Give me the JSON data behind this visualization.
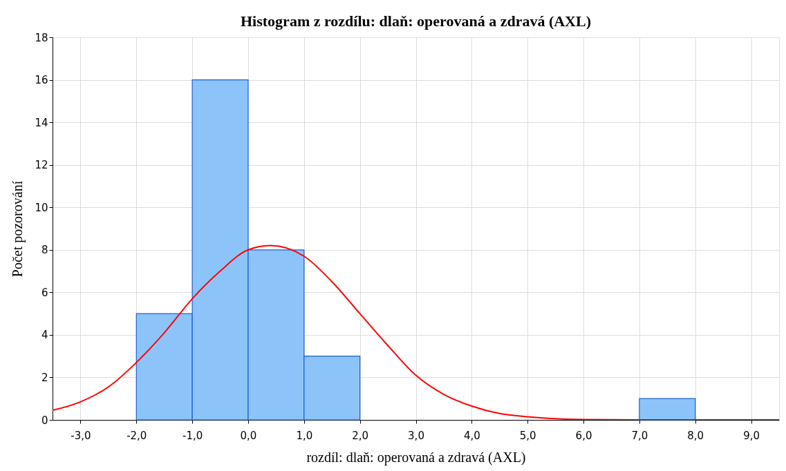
{
  "chart_data": {
    "type": "histogram",
    "title": "Histogram z rozdílu: dlaň: operovaná a zdravá (AXL)",
    "xlabel": "rozdíl: dlaň: operovaná a zdravá (AXL)",
    "ylabel": "Počet pozorování",
    "bins": [
      -2,
      -1,
      0,
      1,
      2,
      3,
      4,
      5,
      6,
      7,
      8
    ],
    "values": [
      5,
      16,
      8,
      3,
      0,
      0,
      0,
      0,
      0,
      1
    ],
    "color": "#8cc4fa",
    "series": [
      {
        "type": "line",
        "color": "#ff0000",
        "x": [
          -3.5,
          -3,
          -2.5,
          -2,
          -1.5,
          -1,
          -0.5,
          0,
          0.4,
          1,
          1.5,
          2,
          2.5,
          3,
          3.5,
          4,
          4.5,
          5,
          5.5,
          6,
          7,
          8,
          9,
          9.5
        ],
        "values": [
          0.45,
          0.85,
          1.55,
          2.7,
          4.1,
          5.7,
          7.0,
          8.0,
          8.2,
          7.7,
          6.5,
          5.0,
          3.5,
          2.1,
          1.2,
          0.65,
          0.3,
          0.15,
          0.06,
          0.02,
          0,
          0,
          0,
          0
        ]
      }
    ],
    "xlim": [
      -3.5,
      9.5
    ],
    "xticks": [
      {
        "value": -3,
        "label": "-3,0"
      },
      {
        "value": -2,
        "label": "-2,0"
      },
      {
        "value": -1,
        "label": "-1,0"
      },
      {
        "value": 0,
        "label": "0,0"
      },
      {
        "value": 1,
        "label": "1,0"
      },
      {
        "value": 2,
        "label": "2,0"
      },
      {
        "value": 3,
        "label": "3,0"
      },
      {
        "value": 4,
        "label": "4,0"
      },
      {
        "value": 5,
        "label": "5,0"
      },
      {
        "value": 6,
        "label": "6,0"
      },
      {
        "value": 7,
        "label": "7,0"
      },
      {
        "value": 8,
        "label": "8,0"
      },
      {
        "value": 9,
        "label": "9,0"
      }
    ],
    "ylim": [
      0,
      18
    ],
    "yticks": [
      0,
      2,
      4,
      6,
      8,
      10,
      12,
      14,
      16,
      18
    ],
    "grid": true
  }
}
